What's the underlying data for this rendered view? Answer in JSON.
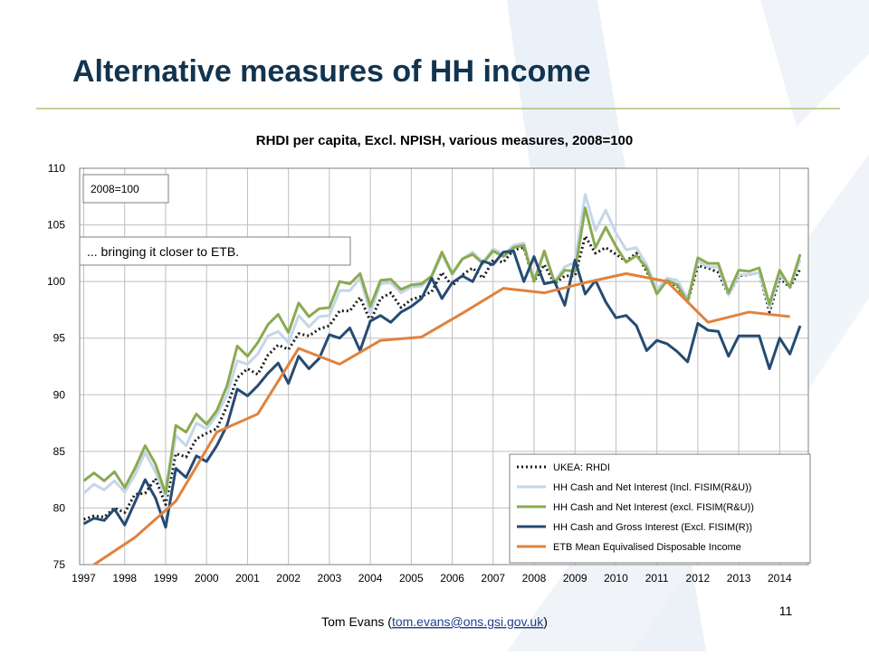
{
  "slide": {
    "title": "Alternative measures of HH income",
    "page_number": "11"
  },
  "footer": {
    "prefix": "Tom Evans (",
    "email": "tom.evans@ons.gsi.gov.uk",
    "suffix": ")"
  },
  "chart_data": {
    "type": "line",
    "title": "RHDI per capita, Excl. NPISH, various measures, 2008=100",
    "annotations": [
      "2008=100",
      "... bringing it closer to ETB."
    ],
    "x": [
      1997,
      1997.25,
      1997.5,
      1997.75,
      1998,
      1998.25,
      1998.5,
      1998.75,
      1999,
      1999.25,
      1999.5,
      1999.75,
      2000,
      2000.25,
      2000.5,
      2000.75,
      2001,
      2001.25,
      2001.5,
      2001.75,
      2002,
      2002.25,
      2002.5,
      2002.75,
      2003,
      2003.25,
      2003.5,
      2003.75,
      2004,
      2004.25,
      2004.5,
      2004.75,
      2005,
      2005.25,
      2005.5,
      2005.75,
      2006,
      2006.25,
      2006.5,
      2006.75,
      2007,
      2007.25,
      2007.5,
      2007.75,
      2008,
      2008.25,
      2008.5,
      2008.75,
      2009,
      2009.25,
      2009.5,
      2009.75,
      2010,
      2010.25,
      2010.5,
      2010.75,
      2011,
      2011.25,
      2011.5,
      2011.75,
      2012,
      2012.25,
      2012.5,
      2012.75,
      2013,
      2013.25,
      2013.5,
      2013.75,
      2014,
      2014.25,
      2014.5
    ],
    "xlim": [
      1996.9,
      2014.7
    ],
    "xticks": [
      1997,
      1998,
      1999,
      2000,
      2001,
      2002,
      2003,
      2004,
      2005,
      2006,
      2007,
      2008,
      2009,
      2010,
      2011,
      2012,
      2013,
      2014
    ],
    "ylim": [
      75,
      110
    ],
    "yticks": [
      75,
      80,
      85,
      90,
      95,
      100,
      105,
      110
    ],
    "grid": true,
    "legend": "bottom-right",
    "series": [
      {
        "name": "UKEA: RHDI",
        "color": "#1a1a1a",
        "line_style": "dotted",
        "values": [
          79.0,
          79.3,
          79.2,
          80.0,
          79.6,
          81.2,
          81.3,
          82.6,
          80.3,
          84.8,
          84.5,
          86.1,
          86.6,
          87.0,
          89.0,
          91.5,
          92.3,
          91.8,
          93.5,
          94.4,
          94.0,
          95.4,
          95.2,
          95.8,
          96.1,
          97.4,
          97.4,
          98.6,
          96.5,
          98.5,
          99.0,
          97.7,
          98.4,
          98.7,
          99.1,
          100.8,
          99.6,
          100.6,
          101.2,
          100.3,
          101.9,
          101.7,
          102.8,
          103.0,
          100.0,
          101.5,
          99.8,
          100.5,
          100.5,
          104.0,
          102.5,
          103.0,
          102.4,
          101.8,
          102.5,
          100.9,
          99.2,
          100.0,
          99.6,
          98.2,
          101.4,
          101.2,
          100.8,
          98.8,
          100.5,
          100.6,
          100.8,
          97.3,
          100.3,
          99.5,
          101.1
        ]
      },
      {
        "name": "HH Cash and Net Interest (Incl. FISIM(R&U))",
        "color": "#c5d6ea",
        "line_style": "solid",
        "values": [
          81.3,
          82.1,
          81.6,
          82.4,
          81.4,
          82.9,
          84.9,
          83.2,
          81.0,
          86.4,
          85.5,
          87.5,
          87.0,
          88.2,
          90.0,
          93.0,
          92.7,
          93.6,
          95.2,
          95.6,
          94.6,
          97.0,
          96.0,
          96.9,
          97.0,
          99.2,
          99.2,
          100.3,
          97.2,
          99.8,
          99.9,
          99.0,
          99.5,
          99.6,
          100.4,
          102.4,
          100.6,
          102.0,
          102.6,
          101.7,
          102.9,
          102.4,
          103.2,
          103.4,
          100.1,
          102.6,
          100.0,
          101.3,
          101.7,
          107.7,
          104.5,
          106.3,
          104.3,
          102.8,
          103.0,
          101.5,
          99.3,
          100.3,
          100.1,
          98.5,
          101.8,
          101.3,
          101.3,
          98.8,
          100.6,
          100.6,
          100.8,
          97.7,
          100.6,
          99.6,
          101.9
        ]
      },
      {
        "name": "HH Cash and Net Interest (excl. FISIM(R&U))",
        "color": "#8aaa51",
        "line_style": "solid",
        "values": [
          82.4,
          83.1,
          82.4,
          83.2,
          81.8,
          83.5,
          85.5,
          83.9,
          81.3,
          87.3,
          86.7,
          88.3,
          87.4,
          88.6,
          90.8,
          94.3,
          93.4,
          94.6,
          96.2,
          97.1,
          95.5,
          98.1,
          96.9,
          97.6,
          97.7,
          100.0,
          99.8,
          100.7,
          97.8,
          100.1,
          100.2,
          99.3,
          99.7,
          99.8,
          100.5,
          102.6,
          100.7,
          102.0,
          102.4,
          101.6,
          102.7,
          102.2,
          103.0,
          103.2,
          100.0,
          102.7,
          99.9,
          101.0,
          100.9,
          106.5,
          103.0,
          104.8,
          103.1,
          101.7,
          102.3,
          101.2,
          98.9,
          100.1,
          99.7,
          98.2,
          102.1,
          101.6,
          101.6,
          99.0,
          101.0,
          100.9,
          101.2,
          98.0,
          101.0,
          99.5,
          102.4
        ]
      },
      {
        "name": "HH Cash and Gross Interest (Excl. FISIM(R))",
        "color": "#254b73",
        "line_style": "solid",
        "values": [
          78.6,
          79.1,
          78.9,
          79.9,
          78.5,
          80.5,
          82.5,
          80.9,
          78.3,
          83.5,
          82.7,
          84.6,
          84.1,
          85.5,
          87.3,
          90.5,
          89.9,
          90.8,
          91.9,
          92.8,
          91.0,
          93.4,
          92.3,
          93.2,
          95.3,
          95.0,
          95.9,
          93.9,
          96.5,
          97.0,
          96.4,
          97.3,
          97.8,
          98.5,
          100.3,
          98.5,
          99.9,
          100.5,
          100.0,
          101.8,
          101.5,
          102.6,
          102.7,
          100.0,
          102.2,
          99.8,
          100.0,
          97.9,
          101.9,
          98.9,
          100.1,
          98.2,
          96.8,
          97.0,
          96.1,
          93.9,
          94.8,
          94.5,
          93.8,
          92.9,
          96.3,
          95.7,
          95.6,
          93.4,
          95.2,
          95.2,
          95.2,
          92.3,
          95.0,
          93.6,
          96.1
        ]
      },
      {
        "name": "ETB Mean Equivalised Disposable Income",
        "color": "#e0823d",
        "line_style": "solid",
        "x": [
          1997.25,
          1998.25,
          1999.25,
          2000.25,
          2001.25,
          2002.25,
          2003.25,
          2004.25,
          2005.25,
          2006.25,
          2007.25,
          2008.25,
          2009.25,
          2010.25,
          2011.25,
          2012.25,
          2013.25,
          2014.25
        ],
        "values": [
          75.0,
          77.4,
          80.6,
          86.7,
          88.3,
          94.1,
          92.7,
          94.8,
          95.1,
          97.2,
          99.4,
          99.0,
          99.9,
          100.7,
          100.0,
          96.4,
          97.3,
          96.9
        ]
      }
    ]
  }
}
